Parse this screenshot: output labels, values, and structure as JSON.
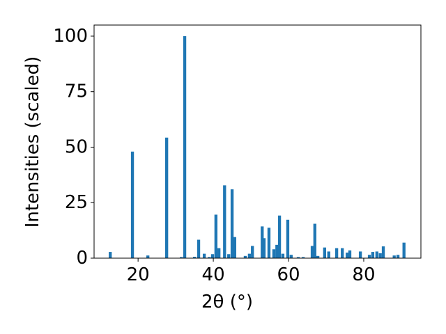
{
  "chart_data": {
    "type": "bar",
    "xlabel": "2θ (°)",
    "ylabel": "Intensities (scaled)",
    "x": [
      12.6,
      18.5,
      22.6,
      27.6,
      31.5,
      32.4,
      35.0,
      36.1,
      37.6,
      38.9,
      39.8,
      40.7,
      41.5,
      43.0,
      44.1,
      45.0,
      45.7,
      48.5,
      49.6,
      50.4,
      53.0,
      53.5,
      54.8,
      56.1,
      56.9,
      57.6,
      58.5,
      59.8,
      60.7,
      62.6,
      63.9,
      66.3,
      67.0,
      67.8,
      69.6,
      70.7,
      72.8,
      74.3,
      75.6,
      76.3,
      79.1,
      81.5,
      82.4,
      83.5,
      84.4,
      85.2,
      88.1,
      89.1,
      90.7
    ],
    "values": [
      2.8,
      48,
      1.2,
      54.3,
      0.5,
      100,
      0.6,
      8.3,
      2,
      0.5,
      1.8,
      19.6,
      4.5,
      32.8,
      1.8,
      31,
      9.5,
      1,
      2,
      5.5,
      14.3,
      9,
      13.7,
      4,
      6,
      19.2,
      2,
      17.3,
      1.5,
      0.5,
      0.5,
      5.5,
      15.5,
      1,
      4.8,
      3,
      4.5,
      4.5,
      2.5,
      3.5,
      3,
      1.5,
      2.8,
      3,
      2.2,
      5.3,
      1.2,
      1.5,
      7
    ],
    "color": "#1f77b4",
    "xlim": [
      8.3,
      95.2
    ],
    "xticks": [
      20,
      40,
      60,
      80
    ],
    "ylim": [
      0,
      105
    ],
    "yticks": [
      0,
      25,
      50,
      75,
      100
    ]
  }
}
